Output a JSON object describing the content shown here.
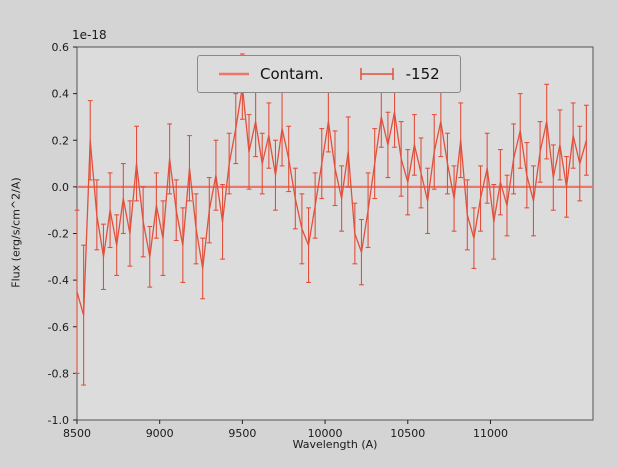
{
  "figure": {
    "offset_text": "1e-18"
  },
  "chart_data": {
    "type": "line",
    "subtype": "errorbar-spectrum",
    "title": "",
    "xlabel": "Wavelength (A)",
    "ylabel": "Flux (erg/s/cm^2/A)",
    "y_scale": "1e-18",
    "xlim": [
      8500,
      11620
    ],
    "ylim": [
      -1.0,
      0.6
    ],
    "grid": false,
    "legend_position": "upper center",
    "x_ticks": [
      8500,
      9000,
      9500,
      10000,
      10500,
      11000
    ],
    "x_tick_labels": [
      "8500",
      "9000",
      "9500",
      "10000",
      "10500",
      "11000"
    ],
    "y_ticks": [
      -1.0,
      -0.8,
      -0.6,
      -0.4,
      -0.2,
      0.0,
      0.2,
      0.4,
      0.6
    ],
    "y_tick_labels": [
      "-1.0",
      "-0.8",
      "-0.6",
      "-0.4",
      "-0.2",
      "0.0",
      "0.2",
      "0.4",
      "0.6"
    ],
    "colors": {
      "contam": "#ee7668",
      "series": "#e2503c",
      "axes_bg": "#dcdcdc",
      "figure_bg": "#d4d4d4",
      "spine": "#555555",
      "tick_text": "#1a1a1a"
    },
    "series": [
      {
        "name": "Contam.",
        "type": "hline",
        "y": 0.0
      },
      {
        "name": "-152",
        "type": "errorbar",
        "x": [
          8500,
          8540,
          8580,
          8620,
          8660,
          8700,
          8740,
          8780,
          8820,
          8860,
          8900,
          8940,
          8980,
          9020,
          9060,
          9100,
          9140,
          9180,
          9220,
          9260,
          9300,
          9340,
          9380,
          9420,
          9460,
          9500,
          9540,
          9580,
          9620,
          9660,
          9700,
          9740,
          9780,
          9820,
          9860,
          9900,
          9940,
          9980,
          10020,
          10060,
          10100,
          10140,
          10180,
          10220,
          10260,
          10300,
          10340,
          10380,
          10420,
          10460,
          10500,
          10540,
          10580,
          10620,
          10660,
          10700,
          10740,
          10780,
          10820,
          10860,
          10900,
          10940,
          10980,
          11020,
          11060,
          11100,
          11140,
          11180,
          11220,
          11260,
          11300,
          11340,
          11380,
          11420,
          11460,
          11500,
          11540,
          11580
        ],
        "y": [
          -0.45,
          -0.55,
          0.2,
          -0.12,
          -0.3,
          -0.1,
          -0.25,
          -0.05,
          -0.2,
          0.1,
          -0.15,
          -0.3,
          -0.08,
          -0.22,
          0.12,
          -0.1,
          -0.25,
          0.08,
          -0.18,
          -0.35,
          -0.1,
          0.05,
          -0.15,
          0.1,
          0.25,
          0.43,
          0.15,
          0.28,
          0.1,
          0.22,
          0.05,
          0.25,
          0.12,
          -0.05,
          -0.18,
          -0.25,
          -0.08,
          0.1,
          0.28,
          0.08,
          -0.05,
          0.15,
          -0.2,
          -0.28,
          -0.1,
          0.1,
          0.3,
          0.18,
          0.32,
          0.12,
          0.02,
          0.18,
          0.06,
          -0.06,
          0.15,
          0.28,
          0.1,
          -0.05,
          0.2,
          -0.12,
          -0.22,
          -0.05,
          0.08,
          -0.15,
          0.02,
          -0.08,
          0.12,
          0.24,
          0.05,
          -0.06,
          0.15,
          0.28,
          0.04,
          0.18,
          0.0,
          0.22,
          0.1,
          0.2
        ],
        "yerr": [
          0.35,
          0.3,
          0.17,
          0.15,
          0.14,
          0.16,
          0.13,
          0.15,
          0.14,
          0.16,
          0.15,
          0.13,
          0.14,
          0.16,
          0.15,
          0.13,
          0.16,
          0.14,
          0.15,
          0.13,
          0.14,
          0.15,
          0.16,
          0.13,
          0.15,
          0.14,
          0.16,
          0.15,
          0.13,
          0.14,
          0.15,
          0.16,
          0.14,
          0.13,
          0.15,
          0.16,
          0.14,
          0.15,
          0.13,
          0.16,
          0.14,
          0.15,
          0.13,
          0.14,
          0.16,
          0.15,
          0.13,
          0.14,
          0.15,
          0.16,
          0.14,
          0.13,
          0.15,
          0.14,
          0.16,
          0.15,
          0.13,
          0.14,
          0.16,
          0.15,
          0.13,
          0.14,
          0.15,
          0.16,
          0.14,
          0.13,
          0.15,
          0.16,
          0.14,
          0.15,
          0.13,
          0.16,
          0.14,
          0.15,
          0.13,
          0.14,
          0.16,
          0.15
        ]
      }
    ]
  }
}
